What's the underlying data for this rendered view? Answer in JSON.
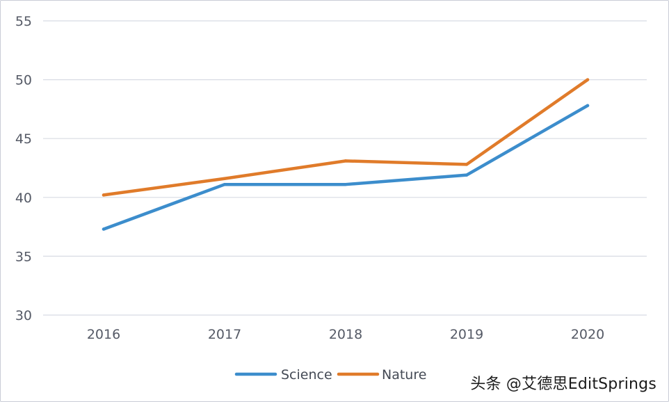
{
  "chart_data": {
    "type": "line",
    "categories": [
      "2016",
      "2017",
      "2018",
      "2019",
      "2020"
    ],
    "series": [
      {
        "name": "Science",
        "values": [
          37.3,
          41.1,
          41.1,
          41.9,
          47.8
        ],
        "color": "#3c8dcc"
      },
      {
        "name": "Nature",
        "values": [
          40.2,
          41.6,
          43.1,
          42.8,
          50.0
        ],
        "color": "#e07b2a"
      }
    ],
    "yticks": [
      30,
      35,
      40,
      45,
      50,
      55
    ],
    "ylim": [
      30,
      55
    ],
    "grid": true,
    "legend_position": "bottom"
  },
  "watermark": "头条 @艾德思EditSprings"
}
